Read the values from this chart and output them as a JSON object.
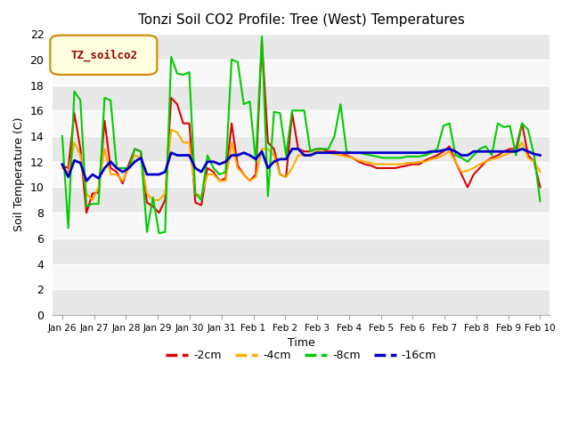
{
  "title": "Tonzi Soil CO2 Profile: Tree (West) Temperatures",
  "xlabel": "Time",
  "ylabel": "Soil Temperature (C)",
  "legend_label": "TZ_soilco2",
  "ylim": [
    0,
    22
  ],
  "yticks": [
    0,
    2,
    4,
    6,
    8,
    10,
    12,
    14,
    16,
    18,
    20,
    22
  ],
  "series_labels": [
    "-2cm",
    "-4cm",
    "-8cm",
    "-16cm"
  ],
  "series_colors": [
    "#dd0000",
    "#ffaa00",
    "#00cc00",
    "#0000cc"
  ],
  "fig_bg_color": "#ffffff",
  "plot_bg_color": "#ffffff",
  "band_colors": [
    "#e8e8e8",
    "#f8f8f8"
  ],
  "grid_color": "#d0d0d0",
  "xtick_labels": [
    "Jan 26",
    "Jan 27",
    "Jan 28",
    "Jan 29",
    "Jan 30",
    "Jan 31",
    "Feb 1",
    "Feb 2",
    "Feb 3",
    "Feb 4",
    "Feb 5",
    "Feb 6",
    "Feb 7",
    "Feb 8",
    "Feb 9",
    "Feb 10"
  ],
  "t_2cm": [
    11.7,
    11.5,
    15.8,
    13.0,
    8.0,
    9.5,
    9.6,
    15.2,
    11.5,
    11.2,
    10.3,
    11.8,
    13.0,
    12.8,
    8.8,
    8.5,
    8.0,
    9.0,
    17.0,
    16.5,
    15.0,
    15.0,
    8.8,
    8.6,
    11.5,
    11.2,
    10.5,
    10.7,
    15.0,
    11.7,
    11.0,
    10.5,
    11.0,
    21.5,
    13.5,
    13.0,
    11.0,
    10.8,
    15.8,
    13.0,
    12.8,
    12.8,
    13.0,
    13.0,
    12.8,
    12.8,
    12.7,
    12.5,
    12.3,
    12.0,
    11.8,
    11.7,
    11.5,
    11.5,
    11.5,
    11.5,
    11.6,
    11.7,
    11.8,
    11.8,
    12.1,
    12.3,
    12.5,
    12.8,
    13.2,
    12.0,
    11.0,
    10.0,
    11.0,
    11.5,
    12.0,
    12.3,
    12.5,
    12.8,
    13.0,
    13.0,
    15.0,
    12.5,
    12.0,
    10.0
  ],
  "t_4cm": [
    11.5,
    11.2,
    13.5,
    12.5,
    9.5,
    9.0,
    10.0,
    13.0,
    11.0,
    11.0,
    10.5,
    11.5,
    12.5,
    12.3,
    9.5,
    9.0,
    9.0,
    9.5,
    14.5,
    14.3,
    13.5,
    13.5,
    9.5,
    9.3,
    11.0,
    11.0,
    10.5,
    10.5,
    13.5,
    11.5,
    11.0,
    10.5,
    10.8,
    13.0,
    13.0,
    12.5,
    11.0,
    10.8,
    11.5,
    12.5,
    12.5,
    12.5,
    12.8,
    12.8,
    12.7,
    12.6,
    12.5,
    12.4,
    12.3,
    12.1,
    12.0,
    11.9,
    11.8,
    11.8,
    11.8,
    11.8,
    11.8,
    11.9,
    11.9,
    12.0,
    12.0,
    12.2,
    12.3,
    12.5,
    12.8,
    12.0,
    11.2,
    11.3,
    11.5,
    11.8,
    12.0,
    12.2,
    12.3,
    12.5,
    12.7,
    12.8,
    13.5,
    12.3,
    12.0,
    11.2
  ],
  "t_8cm": [
    14.0,
    6.8,
    17.5,
    16.8,
    8.5,
    8.7,
    8.7,
    17.0,
    16.8,
    11.5,
    11.5,
    11.5,
    13.0,
    12.8,
    6.5,
    9.2,
    6.4,
    6.5,
    20.2,
    18.9,
    18.8,
    19.0,
    9.5,
    9.0,
    12.5,
    11.5,
    11.0,
    11.2,
    20.0,
    19.8,
    16.5,
    16.7,
    12.0,
    21.8,
    9.3,
    15.9,
    15.8,
    12.5,
    16.0,
    16.0,
    16.0,
    12.8,
    13.0,
    13.0,
    13.0,
    14.0,
    16.5,
    12.8,
    12.7,
    12.7,
    12.6,
    12.5,
    12.4,
    12.3,
    12.3,
    12.3,
    12.3,
    12.4,
    12.4,
    12.4,
    12.5,
    12.7,
    13.0,
    14.8,
    15.0,
    12.5,
    12.3,
    12.0,
    12.5,
    13.0,
    13.2,
    12.5,
    15.0,
    14.7,
    14.8,
    12.5,
    15.0,
    14.5,
    12.5,
    8.9
  ],
  "t_16cm": [
    11.8,
    10.8,
    12.1,
    11.9,
    10.5,
    11.0,
    10.7,
    11.5,
    12.0,
    11.5,
    11.2,
    11.5,
    12.0,
    12.3,
    11.0,
    11.0,
    11.0,
    11.2,
    12.7,
    12.5,
    12.5,
    12.5,
    11.5,
    11.2,
    12.0,
    12.0,
    11.8,
    12.0,
    12.5,
    12.5,
    12.7,
    12.5,
    12.2,
    12.8,
    11.5,
    12.0,
    12.2,
    12.2,
    13.0,
    13.0,
    12.5,
    12.5,
    12.7,
    12.7,
    12.7,
    12.7,
    12.7,
    12.7,
    12.7,
    12.7,
    12.7,
    12.7,
    12.7,
    12.7,
    12.7,
    12.7,
    12.7,
    12.7,
    12.7,
    12.7,
    12.7,
    12.8,
    12.8,
    12.9,
    13.0,
    12.8,
    12.5,
    12.5,
    12.8,
    12.8,
    12.8,
    12.8,
    12.8,
    12.8,
    12.8,
    12.8,
    13.0,
    12.8,
    12.6,
    12.5
  ]
}
